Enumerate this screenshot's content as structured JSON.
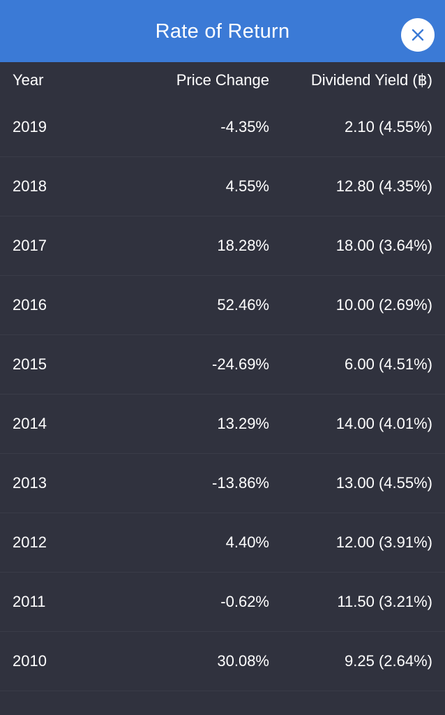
{
  "header": {
    "title": "Rate of Return",
    "close_icon": "close-icon",
    "accent_color": "#3b7ad6"
  },
  "table": {
    "columns": [
      "Year",
      "Price Change",
      "Dividend Yield (฿)"
    ],
    "rows": [
      {
        "year": "2019",
        "price_change": "-4.35%",
        "dividend_yield": "2.10 (4.55%)"
      },
      {
        "year": "2018",
        "price_change": "4.55%",
        "dividend_yield": "12.80 (4.35%)"
      },
      {
        "year": "2017",
        "price_change": "18.28%",
        "dividend_yield": "18.00 (3.64%)"
      },
      {
        "year": "2016",
        "price_change": "52.46%",
        "dividend_yield": "10.00 (2.69%)"
      },
      {
        "year": "2015",
        "price_change": "-24.69%",
        "dividend_yield": "6.00 (4.51%)"
      },
      {
        "year": "2014",
        "price_change": "13.29%",
        "dividend_yield": "14.00 (4.01%)"
      },
      {
        "year": "2013",
        "price_change": "-13.86%",
        "dividend_yield": "13.00 (4.55%)"
      },
      {
        "year": "2012",
        "price_change": "4.40%",
        "dividend_yield": "12.00 (3.91%)"
      },
      {
        "year": "2011",
        "price_change": "-0.62%",
        "dividend_yield": "11.50 (3.21%)"
      },
      {
        "year": "2010",
        "price_change": "30.08%",
        "dividend_yield": "9.25 (2.64%)"
      }
    ]
  }
}
